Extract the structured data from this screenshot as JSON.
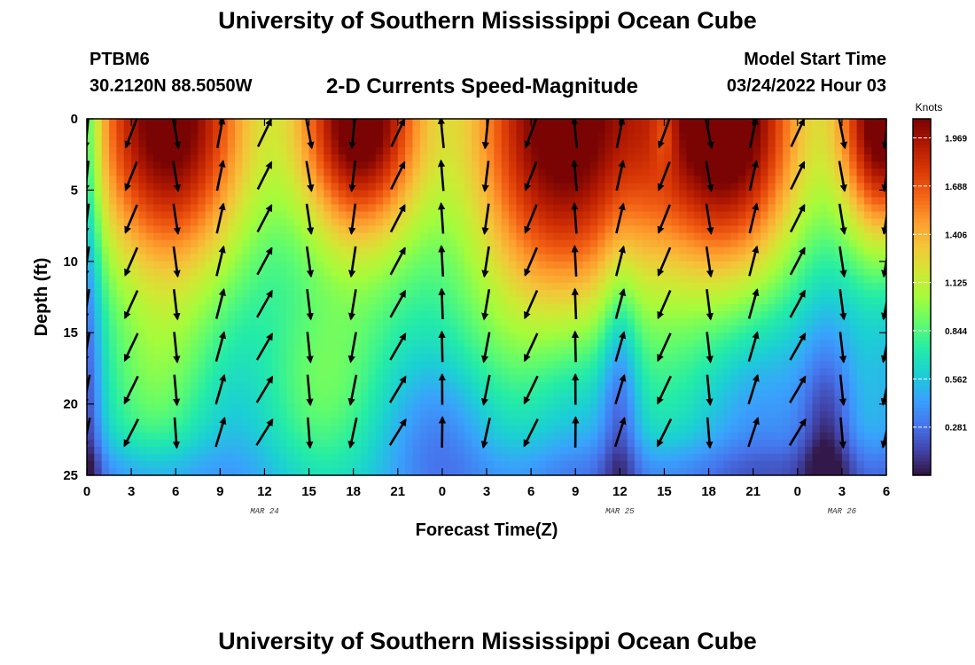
{
  "header": {
    "title": "University of Southern Mississippi Ocean Cube",
    "station": "PTBM6",
    "coords": "30.2120N  88.5050W",
    "subtitle": "2-D Currents Speed-Magnitude",
    "model_start_label": "Model Start Time",
    "model_start_value": "03/24/2022 Hour 03",
    "footer_title": "University of Southern Mississippi Ocean Cube"
  },
  "chart_data": {
    "type": "heatmap",
    "title": "2-D Currents Speed-Magnitude",
    "xlabel": "Forecast Time(Z)",
    "ylabel": "Depth (ft)",
    "x_tick_labels": [
      "0",
      "3",
      "6",
      "9",
      "12",
      "15",
      "18",
      "21",
      "0",
      "3",
      "6",
      "9",
      "12",
      "15",
      "18",
      "21",
      "0",
      "3",
      "6"
    ],
    "x_hours_from_mar24_00z": [
      0,
      3,
      6,
      9,
      12,
      15,
      18,
      21,
      24,
      27,
      30,
      33,
      36,
      39,
      42,
      45,
      48,
      51,
      54
    ],
    "date_labels": [
      {
        "text": "MAR 24",
        "hour": 12
      },
      {
        "text": "MAR 25",
        "hour": 36
      },
      {
        "text": "MAR 26",
        "hour": 51
      }
    ],
    "y_ticks": [
      0,
      5,
      10,
      15,
      20,
      25
    ],
    "ylim": [
      0,
      25
    ],
    "y_inverted": true,
    "colorbar": {
      "unit": "Knots",
      "tick_labels": [
        "1.969",
        "1.688",
        "1.406",
        "1.125",
        "0.844",
        "0.562",
        "0.281"
      ],
      "tick_values": [
        1.969,
        1.688,
        1.406,
        1.125,
        0.844,
        0.562,
        0.281
      ],
      "range": [
        0,
        2.08
      ],
      "colors": [
        "#30123b",
        "#4145ab",
        "#4675ed",
        "#39a2fc",
        "#1bcfd4",
        "#24eca6",
        "#61fc6c",
        "#a4fc3b",
        "#d1e834",
        "#f3c63a",
        "#fe9b2d",
        "#f36315",
        "#d93806",
        "#b11901",
        "#7a0403"
      ]
    },
    "vectors_note": "current direction arrows overlaid on speed field",
    "grid": false
  }
}
